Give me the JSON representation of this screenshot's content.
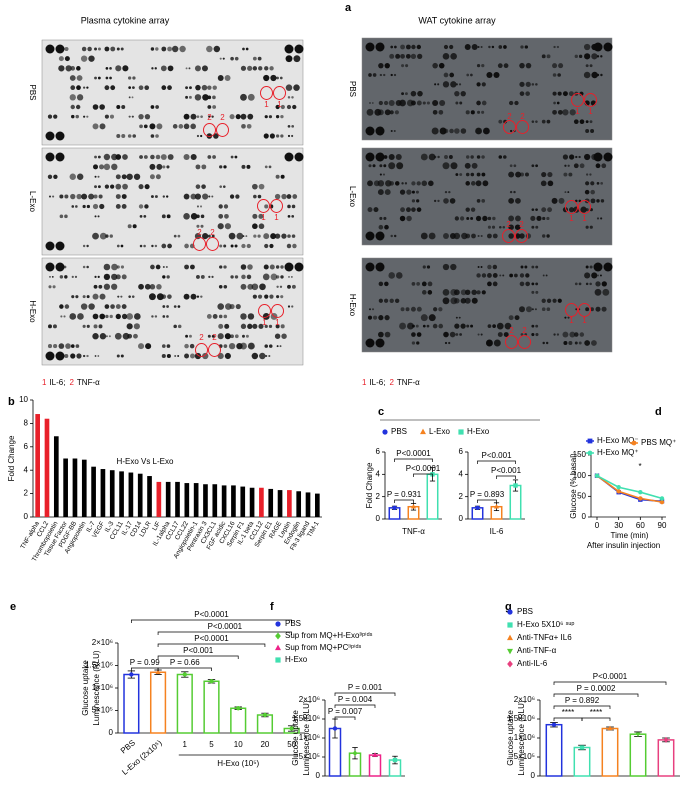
{
  "panel_labels": [
    "a",
    "b",
    "c",
    "d",
    "e",
    "f",
    "g"
  ],
  "blots": {
    "plasma_title": "Plasma cytokine array",
    "wat_title": "WAT cytokine array",
    "rows": [
      "PBS",
      "L-Exo",
      "H-Exo"
    ],
    "key": [
      {
        "num": "1",
        "name": "IL-6;"
      },
      {
        "num": "2",
        "name": "TNF-α"
      }
    ]
  },
  "chart_data": [
    {
      "type": "bar",
      "title": "H-Exo Vs L-Exo",
      "ylabel": "Fold Change",
      "categories": [
        "TNF-alpha",
        "CCL2",
        "Thrombopoietin",
        "Tissue Factor",
        "PDGF-BB",
        "Angiopoietin",
        "IL-7",
        "VEGF",
        "IL-3",
        "CCL11",
        "IL-17",
        "CD14",
        "LDLR",
        "LIF",
        "IL-1alpha",
        "CCL17",
        "CCL22",
        "Angiopoietin-1",
        "Pentraxin 3",
        "CX3CL1",
        "FGF acidic",
        "CXCL16",
        "Serpin F1",
        "IL-1 beta",
        "CCL12",
        "Serpin E1",
        "RAGE",
        "Leptin",
        "Endoglin",
        "Flt-3 ligand",
        "TIM-1"
      ],
      "values": [
        8.8,
        8.4,
        6.9,
        5.0,
        5.0,
        4.9,
        4.3,
        4.1,
        4.0,
        3.9,
        3.8,
        3.7,
        3.5,
        3.0,
        3.0,
        3.0,
        2.9,
        2.9,
        2.8,
        2.8,
        2.7,
        2.7,
        2.6,
        2.5,
        2.5,
        2.4,
        2.3,
        2.3,
        2.2,
        2.1,
        2.0
      ],
      "colors": [
        "#e8202a",
        "#e8202a",
        "#000000",
        "#000000",
        "#000000",
        "#000000",
        "#000000",
        "#000000",
        "#000000",
        "#000000",
        "#000000",
        "#000000",
        "#000000",
        "#e8202a",
        "#000000",
        "#000000",
        "#000000",
        "#000000",
        "#000000",
        "#000000",
        "#000000",
        "#000000",
        "#000000",
        "#000000",
        "#e8202a",
        "#000000",
        "#000000",
        "#e8202a",
        "#000000",
        "#000000",
        "#000000"
      ],
      "ylim": [
        0,
        10
      ],
      "yticks": [
        0,
        2,
        4,
        6,
        8,
        10
      ]
    },
    {
      "type": "dot_bar",
      "ylabel": "Fold Change",
      "categories": [
        "TNF-α",
        "IL-6"
      ],
      "series": [
        {
          "name": "PBS",
          "color": "#2233dd",
          "marker": "circle",
          "values": [
            1.0,
            1.0
          ],
          "errors": [
            0.15,
            0.15
          ]
        },
        {
          "name": "L-Exo",
          "color": "#f58220",
          "marker": "triangle",
          "values": [
            1.1,
            1.1
          ],
          "errors": [
            0.3,
            0.35
          ]
        },
        {
          "name": "H-Exo",
          "color": "#40e0b0",
          "marker": "square",
          "values": [
            4.0,
            3.0
          ],
          "errors": [
            0.6,
            0.5
          ]
        }
      ],
      "annotations": [
        [
          "P = 0.931",
          "P<0.0001",
          "P<0.0001"
        ],
        [
          "P = 0.893",
          "P<0.001",
          "P<0.001"
        ]
      ],
      "ylim": [
        0,
        6
      ],
      "yticks": [
        0,
        2,
        4,
        6
      ]
    },
    {
      "type": "line",
      "ylabel": "Glucose (% basal)",
      "xlabel": "Time (min)",
      "xlabel_note": "After insulin injection",
      "annotation": "*",
      "x": [
        0,
        30,
        60,
        90
      ],
      "xlim": [
        0,
        90
      ],
      "xticks": [
        0,
        30,
        60,
        90
      ],
      "ylim": [
        0,
        150
      ],
      "yticks": [
        0,
        50,
        100,
        150
      ],
      "series": [
        {
          "name": "H-Exo MQ⁻",
          "color": "#2233dd",
          "marker": "square",
          "values": [
            100,
            60,
            42,
            38
          ]
        },
        {
          "name": "PBS MQ⁺",
          "color": "#f58220",
          "marker": "circle",
          "values": [
            100,
            62,
            45,
            36
          ]
        },
        {
          "name": "H-Exo MQ⁺",
          "color": "#40e0b0",
          "marker": "circle",
          "values": [
            100,
            72,
            60,
            45
          ]
        }
      ]
    },
    {
      "type": "dot_bar",
      "ylabel": [
        "Glucose uptake",
        "Luminescence (RLU)"
      ],
      "categories": [
        "PBS",
        "L-Exo (2x10⁵)",
        "1",
        "5",
        "10",
        "20",
        "50"
      ],
      "group_label": "H-Exo (10⁵)",
      "values": [
        1300000,
        1350000,
        1300000,
        1150000,
        550000,
        400000,
        100000
      ],
      "errors": [
        80000,
        50000,
        60000,
        40000,
        30000,
        40000,
        60000
      ],
      "colors": [
        "#2233dd",
        "#f58220",
        "#55cc33",
        "#55cc33",
        "#55cc33",
        "#55cc33",
        "#55cc33"
      ],
      "markers": [
        "circle",
        "triangle",
        "circle",
        "circle",
        "circle",
        "circle",
        "circle"
      ],
      "annotations": [
        "P = 0.99",
        "P = 0.66",
        "P<0.001",
        "P<0.0001",
        "P<0.0001",
        "P<0.0001"
      ],
      "ylim": [
        0,
        2000000
      ],
      "yticks": [
        0,
        {
          "value": 500000,
          "label": "5×10⁵"
        },
        {
          "value": 1000000,
          "label": "1×10⁶"
        },
        {
          "value": 1500000,
          "label": "1.5×10⁶"
        },
        {
          "value": 2000000,
          "label": "2×10⁶"
        }
      ]
    },
    {
      "type": "dot_bar",
      "legend": true,
      "ylabel": [
        "Glucose uptake",
        "Luminescence (RLU)"
      ],
      "categories": [
        "PBS",
        "Sup from MQ+H-Exoˡⁱᵖⁱᵈˢ",
        "Sup from MQ+PCˡⁱᵖⁱᵈˢ",
        "H-Exo"
      ],
      "values": [
        1250000,
        600000,
        550000,
        420000
      ],
      "errors": [
        250000,
        150000,
        40000,
        100000
      ],
      "colors": [
        "#2233dd",
        "#55cc33",
        "#ee2288",
        "#40e0b0"
      ],
      "markers": [
        "circle",
        "diamond",
        "triangle",
        "square"
      ],
      "annotations": [
        "P = 0.007",
        "P = 0.004",
        "P = 0.001"
      ],
      "ylim": [
        0,
        2000000
      ],
      "yticks": [
        0,
        {
          "value": 500000,
          "label": "5×10⁵"
        },
        {
          "value": 1000000,
          "label": "1×10⁶"
        },
        {
          "value": 1500000,
          "label": "1.5×10⁶"
        },
        {
          "value": 2000000,
          "label": "2×10⁶"
        }
      ]
    },
    {
      "type": "dot_bar",
      "legend": true,
      "ylabel": [
        "Glucose uptake",
        "Luminescence (RLU)"
      ],
      "categories": [
        "PBS",
        "H-Exo 5X10⁶ ˢᵘᵖ",
        "Anti-TNFα+ IL6",
        "Anti-TNF-α",
        "Anti-IL-6"
      ],
      "values": [
        1350000,
        750000,
        1250000,
        1100000,
        950000
      ],
      "errors": [
        60000,
        60000,
        40000,
        60000,
        50000
      ],
      "colors": [
        "#2233dd",
        "#40e0b0",
        "#f58220",
        "#55cc33",
        "#e8407f"
      ],
      "markers": [
        "circle",
        "square",
        "triangle",
        "triangle-down",
        "diamond"
      ],
      "annotations": [
        "****",
        "****",
        "P = 0.892",
        "P = 0.0002",
        "P<0.0001"
      ],
      "ylim": [
        0,
        2000000
      ],
      "yticks": [
        0,
        {
          "value": 500000,
          "label": "5×10⁵"
        },
        {
          "value": 1000000,
          "label": "1×10⁶"
        },
        {
          "value": 1500000,
          "label": "1.5×10⁶"
        },
        {
          "value": 2000000,
          "label": "2×10⁶"
        }
      ]
    }
  ]
}
